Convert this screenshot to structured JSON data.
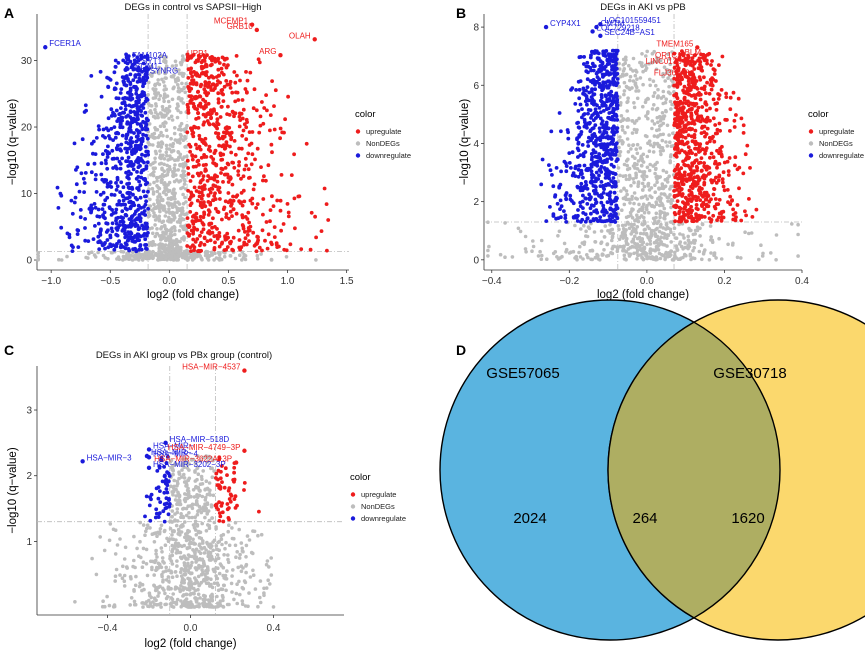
{
  "colors": {
    "up": "#ee1c1c",
    "non": "#bdbdbd",
    "down": "#1a1adb",
    "venn_a": "#5ab4e0",
    "venn_b": "#fbd86d",
    "venn_overlap": "#aeae62",
    "grid": "#bbbbbb"
  },
  "chart_data": [
    {
      "type": "scatter",
      "panel_label": "A",
      "title": "DEGs in control vs SAPSII−High",
      "xlabel": "log2 (fold change)",
      "ylabel": "−log10 (q−value)",
      "xlim": [
        -1.12,
        1.52
      ],
      "ylim": [
        -1.5,
        37
      ],
      "xticks": [
        -1.0,
        -0.5,
        0.0,
        0.5,
        1.0,
        1.5
      ],
      "xtick_labels": [
        "−1.0",
        "−0.5",
        "0.0",
        "0.5",
        "1.0",
        "1.5"
      ],
      "yticks": [
        0,
        10,
        20,
        30
      ],
      "ytick_labels": [
        "0",
        "10",
        "20",
        "30"
      ],
      "vlines": [
        -0.18,
        0.15
      ],
      "hline": 1.3,
      "legend": {
        "title": "color",
        "entries": [
          "upregulate",
          "NonDEGs",
          "downregulate"
        ]
      },
      "highlight_points": [
        {
          "x": -1.05,
          "y": 32,
          "label": "FCER1A",
          "group": "down"
        },
        {
          "x": -0.35,
          "y": 30.2,
          "label": "FAM102A",
          "group": "down"
        },
        {
          "x": -0.31,
          "y": 29.3,
          "label": "ESYT1",
          "group": "down"
        },
        {
          "x": -0.37,
          "y": 28.6,
          "label": "ABLIM1",
          "group": "down"
        },
        {
          "x": -0.2,
          "y": 27.9,
          "label": "SYNRG",
          "group": "down"
        },
        {
          "x": 0.7,
          "y": 35.4,
          "label": "MCEMP1",
          "group": "up"
        },
        {
          "x": 0.74,
          "y": 34.6,
          "label": "GRB10",
          "group": "up"
        },
        {
          "x": 1.23,
          "y": 33.2,
          "label": "OLAH",
          "group": "up"
        },
        {
          "x": 0.94,
          "y": 30.8,
          "label": "ARG",
          "group": "up"
        },
        {
          "x": 0.36,
          "y": 30.5,
          "label": "UPP1",
          "group": "up"
        }
      ],
      "clouds": {
        "x_center": 0.0,
        "down_range": [
          -0.95,
          -0.18
        ],
        "up_range": [
          0.15,
          1.35
        ],
        "max_y": 31
      }
    },
    {
      "type": "scatter",
      "panel_label": "B",
      "title": "DEGs in AKI vs pPB",
      "xlabel": "log2 (fold change)",
      "ylabel": "−log10 (q−value)",
      "xlim": [
        -0.42,
        0.4
      ],
      "ylim": [
        -0.35,
        8.45
      ],
      "xticks": [
        -0.4,
        -0.2,
        0.0,
        0.2,
        0.4
      ],
      "xtick_labels": [
        "−0.4",
        "−0.2",
        "0.0",
        "0.2",
        "0.4"
      ],
      "yticks": [
        0,
        2,
        4,
        6,
        8
      ],
      "ytick_labels": [
        "0",
        "2",
        "4",
        "6",
        "8"
      ],
      "vlines": [
        -0.075,
        0.07
      ],
      "hline": 1.3,
      "legend": {
        "title": "color",
        "entries": [
          "upregulate",
          "NonDEGs",
          "downregulate"
        ]
      },
      "highlight_points": [
        {
          "x": -0.26,
          "y": 8.0,
          "label": "CYP4X1",
          "group": "down"
        },
        {
          "x": -0.12,
          "y": 8.1,
          "label": "LOC101559451",
          "group": "down"
        },
        {
          "x": -0.13,
          "y": 8.0,
          "label": "CMTM",
          "group": "down"
        },
        {
          "x": -0.14,
          "y": 7.85,
          "label": "LOC729218",
          "group": "down"
        },
        {
          "x": -0.12,
          "y": 7.7,
          "label": "SEC24B−AS1",
          "group": "down"
        },
        {
          "x": 0.13,
          "y": 7.3,
          "label": "TMEM165",
          "group": "up"
        },
        {
          "x": 0.15,
          "y": 7.0,
          "label": "BLM",
          "group": "up"
        },
        {
          "x": 0.1,
          "y": 6.9,
          "label": "OR1C1",
          "group": "up"
        },
        {
          "x": 0.1,
          "y": 6.7,
          "label": "LINC0136",
          "group": "up"
        },
        {
          "x": 0.12,
          "y": 6.3,
          "label": "FLJ36848",
          "group": "up"
        }
      ],
      "clouds": {
        "x_center": 0.0,
        "down_range": [
          -0.3,
          -0.075
        ],
        "up_range": [
          0.07,
          0.3
        ],
        "max_y": 7.2
      }
    },
    {
      "type": "scatter",
      "panel_label": "C",
      "title": "DEGs in  AKI group vs  PBx group (control)",
      "xlabel": "log2 (fold change)",
      "ylabel": "−log10 (q−value)",
      "xlim": [
        -0.74,
        0.74
      ],
      "ylim": [
        -0.12,
        3.67
      ],
      "xticks": [
        -0.4,
        0.0,
        0.4
      ],
      "xtick_labels": [
        "−0.4",
        "0.0",
        "0.4"
      ],
      "yticks": [
        1,
        2,
        3
      ],
      "ytick_labels": [
        "1",
        "2",
        "3"
      ],
      "vlines": [
        -0.1,
        0.12
      ],
      "hline": 1.3,
      "legend": {
        "title": "color",
        "entries": [
          "upregulate",
          "NonDEGs",
          "downregulate"
        ]
      },
      "highlight_points": [
        {
          "x": 0.26,
          "y": 3.6,
          "label": "HSA−MIR−4537",
          "group": "up"
        },
        {
          "x": -0.12,
          "y": 2.5,
          "label": "HSA−MIR−518D",
          "group": "down"
        },
        {
          "x": -0.2,
          "y": 2.4,
          "label": "HSA−MIR−",
          "group": "down"
        },
        {
          "x": -0.21,
          "y": 2.3,
          "label": "HSA−MIR−",
          "group": "down"
        },
        {
          "x": 0.26,
          "y": 2.38,
          "label": "HSA−MIR−4749−3P",
          "group": "up"
        },
        {
          "x": -0.2,
          "y": 2.28,
          "label": "HSA−MIR−4",
          "group": "down"
        },
        {
          "x": -0.52,
          "y": 2.22,
          "label": "HSA−MIR−3",
          "group": "down"
        },
        {
          "x": 0.22,
          "y": 2.2,
          "label": "HSA−MIR−3622A−3P",
          "group": "up"
        },
        {
          "x": -0.2,
          "y": 2.12,
          "label": "HSA−MIR−3202−3P",
          "group": "down"
        }
      ],
      "clouds": {
        "x_center": 0.0,
        "down_range": [
          -0.3,
          -0.1
        ],
        "up_range": [
          0.12,
          0.4
        ],
        "max_y": 2.3
      }
    },
    {
      "type": "venn",
      "panel_label": "D",
      "sets": [
        {
          "name": "GSE57065",
          "only": 2024
        },
        {
          "name": "GSE30718",
          "only": 1620
        }
      ],
      "intersection": 264
    }
  ]
}
